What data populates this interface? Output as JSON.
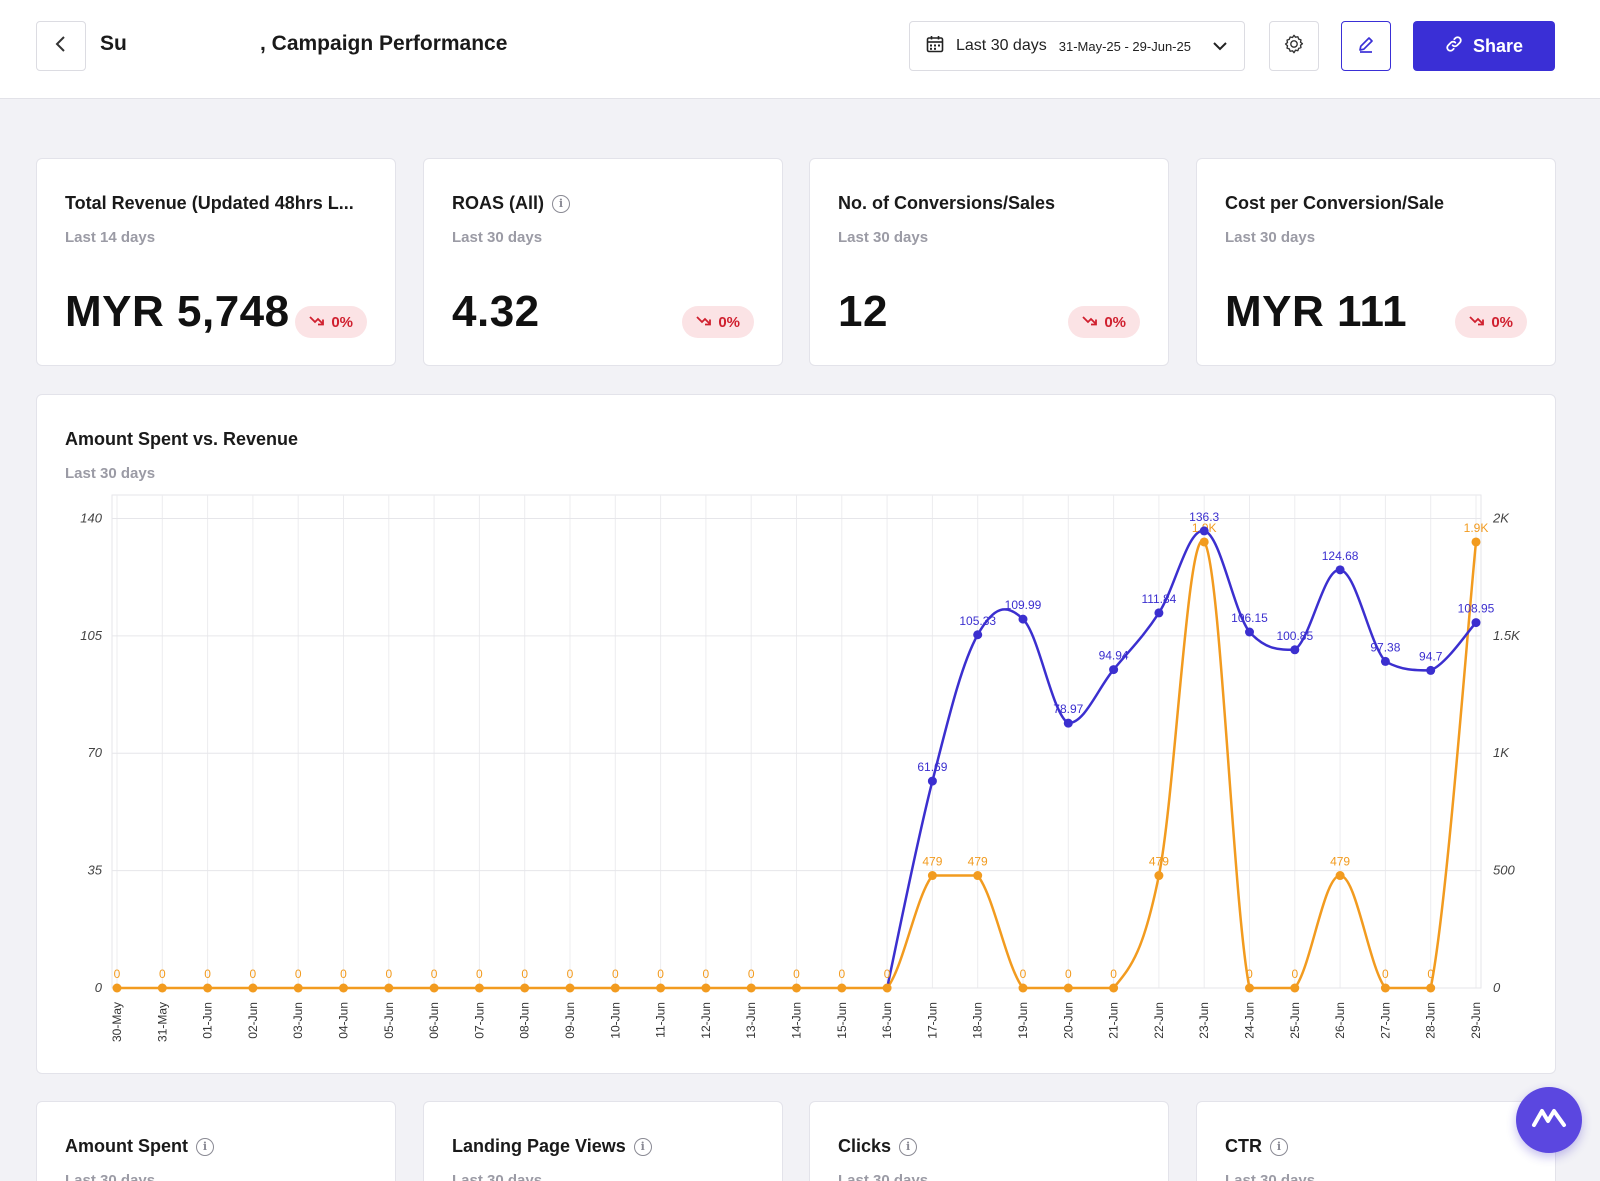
{
  "header": {
    "title_part1": "Su",
    "title_part2": ", Campaign Performance",
    "date_range": {
      "label": "Last 30 days",
      "dates": "31-May-25 - 29-Jun-25"
    },
    "share_label": "Share",
    "icons": {
      "back": "chevron-left-icon",
      "calendar": "calendar-icon",
      "dropdown": "chevron-down-icon",
      "settings": "gear-icon",
      "edit": "pencil-icon",
      "share": "link-icon"
    },
    "colors": {
      "accent": "#3a2fd6"
    }
  },
  "kpis": [
    {
      "title": "Total Revenue (Updated 48hrs L...",
      "subtitle": "Last 14 days",
      "value": "MYR 5,748",
      "change": "0%",
      "info": false
    },
    {
      "title": "ROAS (All)",
      "subtitle": "Last 30 days",
      "value": "4.32",
      "change": "0%",
      "info": true
    },
    {
      "title": "No. of Conversions/Sales",
      "subtitle": "Last 30 days",
      "value": "12",
      "change": "0%",
      "info": false
    },
    {
      "title": "Cost per Conversion/Sale",
      "subtitle": "Last 30 days",
      "value": "MYR 111",
      "change": "0%",
      "info": false
    }
  ],
  "chart_card": {
    "title": "Amount Spent vs. Revenue",
    "subtitle": "Last 30 days"
  },
  "chart_data": {
    "type": "line",
    "title": "Amount Spent vs. Revenue",
    "categories": [
      "30-May",
      "31-May",
      "01-Jun",
      "02-Jun",
      "03-Jun",
      "04-Jun",
      "05-Jun",
      "06-Jun",
      "07-Jun",
      "08-Jun",
      "09-Jun",
      "10-Jun",
      "11-Jun",
      "12-Jun",
      "13-Jun",
      "14-Jun",
      "15-Jun",
      "16-Jun",
      "17-Jun",
      "18-Jun",
      "19-Jun",
      "20-Jun",
      "21-Jun",
      "22-Jun",
      "23-Jun",
      "24-Jun",
      "25-Jun",
      "26-Jun",
      "27-Jun",
      "28-Jun",
      "29-Jun"
    ],
    "left_axis": {
      "ticks": [
        0,
        35,
        70,
        105,
        140
      ],
      "range": [
        0,
        147
      ]
    },
    "right_axis": {
      "ticks": [
        0,
        500,
        1000,
        1500,
        2000
      ],
      "tick_labels": [
        "0",
        "500",
        "1K",
        "1.5K",
        "2K"
      ],
      "range": [
        0,
        2100
      ]
    },
    "grid": true,
    "series": [
      {
        "axis": "left",
        "color": "#3b2fcf",
        "values": [
          null,
          null,
          null,
          null,
          null,
          null,
          null,
          null,
          null,
          null,
          null,
          null,
          null,
          null,
          null,
          null,
          null,
          null,
          61.69,
          105.33,
          109.99,
          78.97,
          94.94,
          111.84,
          136.3,
          106.15,
          100.85,
          124.68,
          97.38,
          94.7,
          108.95
        ],
        "labels": [
          "",
          "",
          "",
          "",
          "",
          "",
          "",
          "",
          "",
          "",
          "",
          "",
          "",
          "",
          "",
          "",
          "",
          "",
          "61.69",
          "105.33",
          "109.99",
          "78.97",
          "94.94",
          "111.84",
          "136.3",
          "106.15",
          "100.85",
          "124.68",
          "97.38",
          "94.7",
          "108.95"
        ]
      },
      {
        "axis": "right",
        "color": "#f29b1f",
        "values": [
          0,
          0,
          0,
          0,
          0,
          0,
          0,
          0,
          0,
          0,
          0,
          0,
          0,
          0,
          0,
          0,
          0,
          0,
          479,
          479,
          0,
          0,
          0,
          479,
          1900,
          0,
          0,
          479,
          0,
          0,
          1900
        ],
        "labels": [
          "0",
          "0",
          "0",
          "0",
          "0",
          "0",
          "0",
          "0",
          "0",
          "0",
          "0",
          "0",
          "0",
          "0",
          "0",
          "0",
          "0",
          "0",
          "479",
          "479",
          "0",
          "0",
          "0",
          "479",
          "1.9K",
          "0",
          "0",
          "479",
          "0",
          "0",
          "1.9K"
        ]
      }
    ]
  },
  "bottom_cards": [
    {
      "title": "Amount Spent",
      "subtitle": "Last 30 days",
      "info": true
    },
    {
      "title": "Landing Page Views",
      "subtitle": "Last 30 days",
      "info": true
    },
    {
      "title": "Clicks",
      "subtitle": "Last 30 days",
      "info": true
    },
    {
      "title": "CTR",
      "subtitle": "Last 30 days",
      "info": true
    }
  ],
  "fab": {
    "icon": "assistant-logo-icon"
  }
}
